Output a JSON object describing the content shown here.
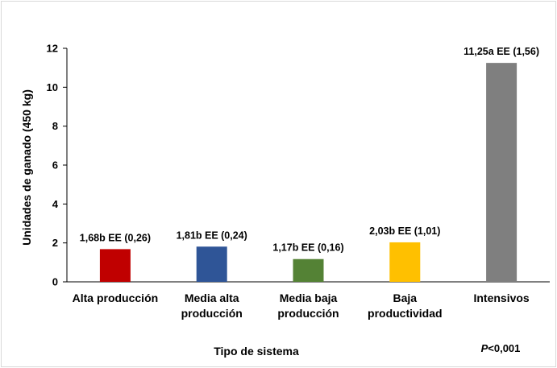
{
  "chart_data": {
    "type": "bar",
    "categories": [
      [
        "Alta producción"
      ],
      [
        "Media alta",
        "producción"
      ],
      [
        "Media baja",
        "producción"
      ],
      [
        "Baja",
        "productividad"
      ],
      [
        "Intensivos"
      ]
    ],
    "values": [
      1.68,
      1.81,
      1.17,
      2.03,
      11.25
    ],
    "data_labels": [
      "1,68b EE (0,26)",
      "1,81b EE (0,24)",
      "1,17b EE (0,16)",
      "2,03b EE (1,01)",
      "11,25a EE (1,56)"
    ],
    "colors": [
      "#c00000",
      "#2f5597",
      "#548235",
      "#ffc000",
      "#7f7f7f"
    ],
    "ylabel": "Unidades de ganado (450 kg)",
    "xlabel": "Tipo de sistema",
    "ylim": [
      0,
      12
    ],
    "yticks": [
      "0",
      "2",
      "4",
      "6",
      "8",
      "10",
      "12"
    ],
    "grid": false,
    "note_italic": "P",
    "note_rest": "<0,001"
  }
}
